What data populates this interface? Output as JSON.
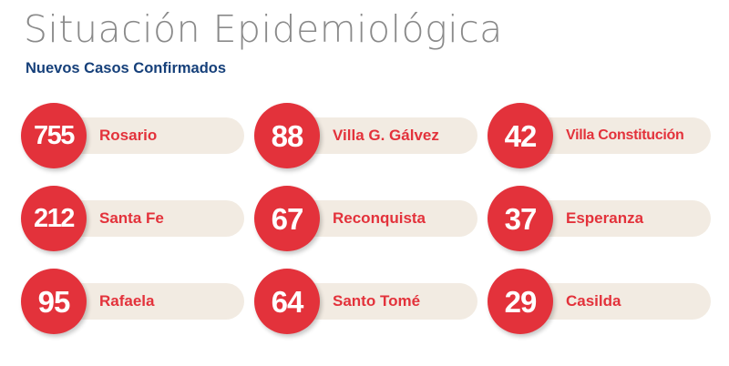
{
  "header": {
    "title": "Situación Epidemiológica",
    "subtitle": "Nuevos Casos Confirmados"
  },
  "colors": {
    "accent": "#e3323b",
    "pill": "#f2ebe2",
    "title": "#8a8a8a",
    "subtitle": "#16407a"
  },
  "cards": [
    {
      "value": "755",
      "city": "Rosario"
    },
    {
      "value": "88",
      "city": "Villa G. Gálvez"
    },
    {
      "value": "42",
      "city": "Villa Constitución"
    },
    {
      "value": "212",
      "city": "Santa Fe"
    },
    {
      "value": "67",
      "city": "Reconquista"
    },
    {
      "value": "37",
      "city": "Esperanza"
    },
    {
      "value": "95",
      "city": "Rafaela"
    },
    {
      "value": "64",
      "city": "Santo Tomé"
    },
    {
      "value": "29",
      "city": "Casilda"
    }
  ]
}
